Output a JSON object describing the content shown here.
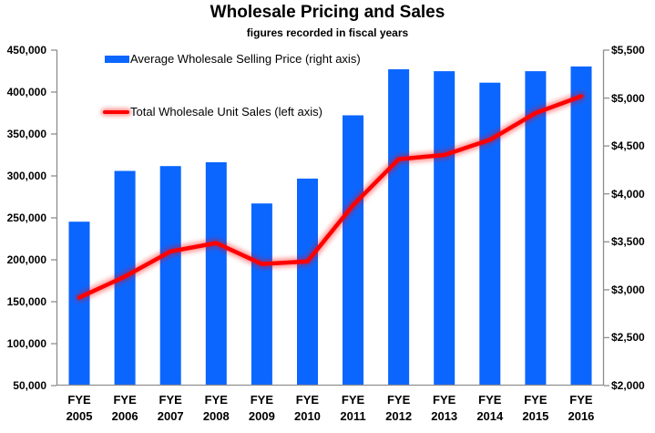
{
  "chart": {
    "title": "Wholesale Pricing and Sales",
    "subtitle": "figures recorded in fiscal years"
  },
  "colors": {
    "bar": "#0a66ff",
    "line": "#ff0000",
    "line_glow": "rgba(255,0,0,0.45)",
    "axis": "#8e8e8e",
    "text": "#000000"
  },
  "chart_data": {
    "type": "combo-bar-line",
    "title": "Wholesale Pricing and Sales",
    "subtitle": "figures recorded in fiscal years",
    "categories": [
      "FYE 2005",
      "FYE 2006",
      "FYE 2007",
      "FYE 2008",
      "FYE 2009",
      "FYE 2010",
      "FYE 2011",
      "FYE 2012",
      "FYE 2013",
      "FYE 2014",
      "FYE 2015",
      "FYE 2016"
    ],
    "series": [
      {
        "name": "Average Wholesale Selling Price (right axis)",
        "type": "bar",
        "axis": "right",
        "color": "#0a66ff",
        "values": [
          3710,
          4240,
          4290,
          4330,
          3900,
          4160,
          4820,
          5300,
          5280,
          5160,
          5280,
          5330
        ]
      },
      {
        "name": "Total Wholesale Unit Sales (left axis)",
        "type": "line",
        "axis": "left",
        "color": "#ff0000",
        "values": [
          155000,
          180000,
          210000,
          220000,
          195000,
          198000,
          265000,
          320000,
          325000,
          343000,
          375000,
          395000
        ]
      }
    ],
    "left_axis": {
      "min": 50000,
      "max": 450000,
      "step": 50000,
      "tick_labels": [
        "450,000",
        "400,000",
        "350,000",
        "300,000",
        "250,000",
        "200,000",
        "150,000",
        "100,000",
        "50,000"
      ],
      "tick_values": [
        450000,
        400000,
        350000,
        300000,
        250000,
        200000,
        150000,
        100000,
        50000
      ]
    },
    "right_axis": {
      "min": 2000,
      "max": 5500,
      "step": 500,
      "tick_labels": [
        "$5,500",
        "$5,000",
        "$4,500",
        "$4,000",
        "$3,500",
        "$3,000",
        "$2,500",
        "$2,000"
      ],
      "tick_values": [
        5500,
        5000,
        4500,
        4000,
        3500,
        3000,
        2500,
        2000
      ]
    },
    "grid": false,
    "legend_position": "inside-top-left"
  }
}
